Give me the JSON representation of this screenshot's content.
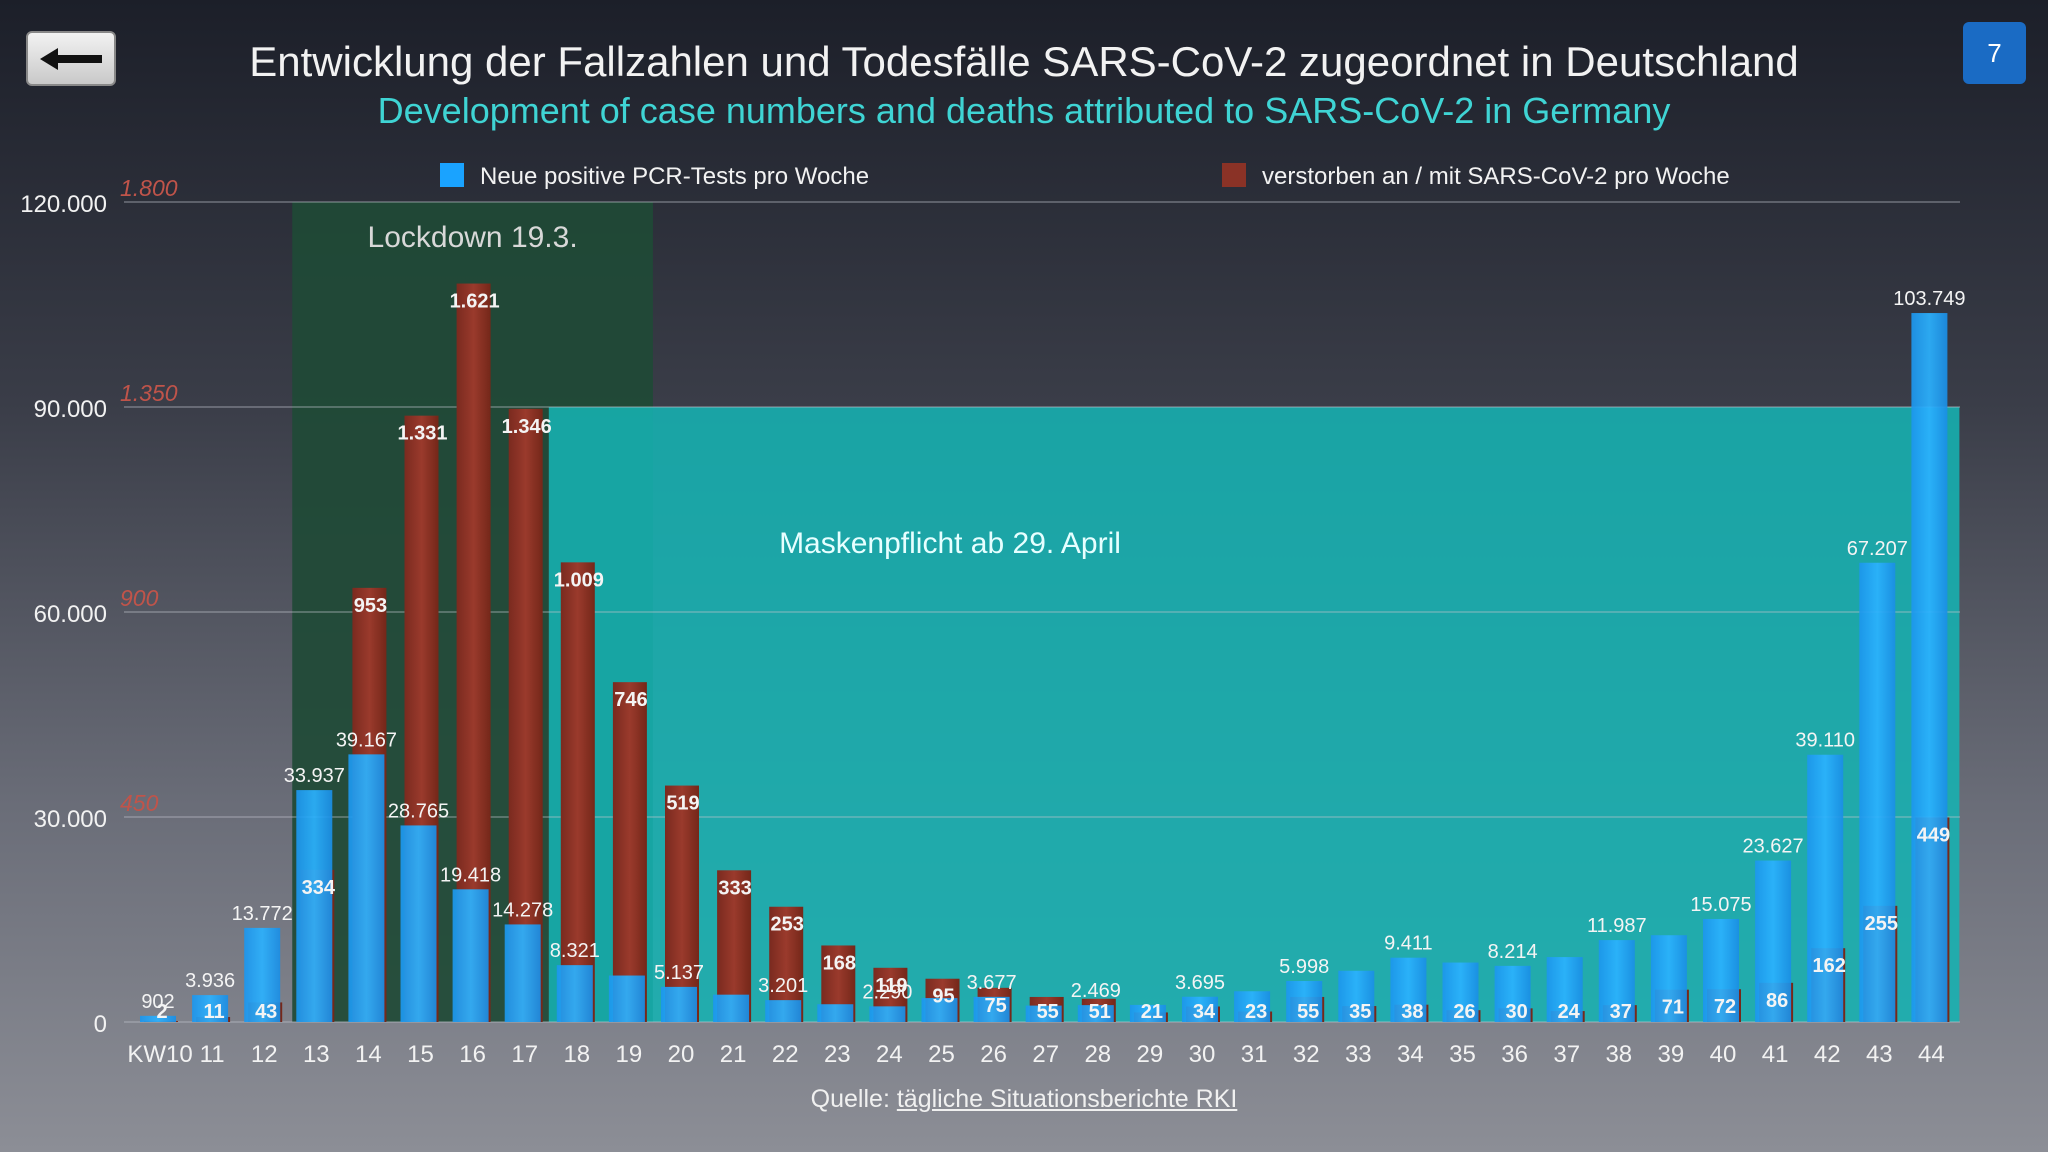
{
  "page": {
    "number": "7",
    "title": "Entwicklung der Fallzahlen und Todesfälle SARS-CoV-2 zugeordnet in Deutschland",
    "subtitle": "Development of case numbers and deaths attributed to SARS-CoV-2 in Germany",
    "source_prefix": "Quelle: ",
    "source_link": "tägliche Situationsberichte RKI"
  },
  "chart_data": {
    "type": "bar",
    "categories": [
      "KW10",
      "11",
      "12",
      "13",
      "14",
      "15",
      "16",
      "17",
      "18",
      "19",
      "20",
      "21",
      "22",
      "23",
      "24",
      "25",
      "26",
      "27",
      "28",
      "29",
      "30",
      "31",
      "32",
      "33",
      "34",
      "35",
      "36",
      "37",
      "38",
      "39",
      "40",
      "41",
      "42",
      "43",
      "44"
    ],
    "series": [
      {
        "name": "Neue positive PCR-Tests pro Woche",
        "axis": "left",
        "color": "#1aa3ff",
        "values": [
          902,
          3936,
          13772,
          33937,
          39167,
          28765,
          19418,
          14278,
          8321,
          6800,
          5137,
          4000,
          3201,
          2600,
          2290,
          3500,
          3677,
          2400,
          2469,
          2500,
          3695,
          4500,
          5998,
          7500,
          9411,
          8700,
          8214,
          9500,
          11987,
          12700,
          15075,
          23627,
          39110,
          67207,
          103749
        ],
        "labels": [
          "902",
          "3.936",
          "13.772",
          "33.937",
          "39.167",
          "28.765",
          "19.418",
          "14.278",
          "8.321",
          "",
          "5.137",
          "",
          "3.201",
          "",
          "2.290",
          "",
          "3.677",
          "",
          "2.469",
          "",
          "3.695",
          "",
          "5.998",
          "",
          "9.411",
          "",
          "8.214",
          "",
          "11.987",
          "",
          "15.075",
          "23.627",
          "39.110",
          "67.207",
          "103.749"
        ]
      },
      {
        "name": "verstorben an / mit SARS-CoV-2 pro Woche",
        "axis": "right",
        "color": "#8a3226",
        "values": [
          2,
          11,
          43,
          334,
          953,
          1331,
          1621,
          1346,
          1009,
          746,
          519,
          333,
          253,
          168,
          119,
          95,
          75,
          55,
          51,
          21,
          34,
          23,
          55,
          35,
          38,
          26,
          30,
          24,
          37,
          71,
          72,
          86,
          162,
          255,
          449
        ],
        "labels": [
          "2",
          "11",
          "43",
          "334",
          "953",
          "1.331",
          "1.621",
          "1.346",
          "1.009",
          "746",
          "519",
          "333",
          "253",
          "168",
          "119",
          "95",
          "75",
          "55",
          "51",
          "21",
          "34",
          "23",
          "55",
          "35",
          "38",
          "26",
          "30",
          "24",
          "37",
          "71",
          "72",
          "86",
          "162",
          "255",
          "449"
        ]
      }
    ],
    "left_axis": {
      "ylim": [
        0,
        120000
      ],
      "ticks": [
        "0",
        "30.000",
        "60.000",
        "90.000",
        "120.000"
      ]
    },
    "right_axis": {
      "ylim": [
        0,
        1800
      ],
      "ticks": [
        "450",
        "900",
        "1.350",
        "1.800"
      ]
    },
    "grid": true,
    "legend_position": "top",
    "annotations": [
      {
        "text": "Lockdown 19.3.",
        "from": "13",
        "to": "19",
        "color": "#1f4a36"
      },
      {
        "text": "Maskenpflicht ab 29. April",
        "from": "18",
        "to": "44",
        "color": "#16b2b2"
      }
    ]
  }
}
